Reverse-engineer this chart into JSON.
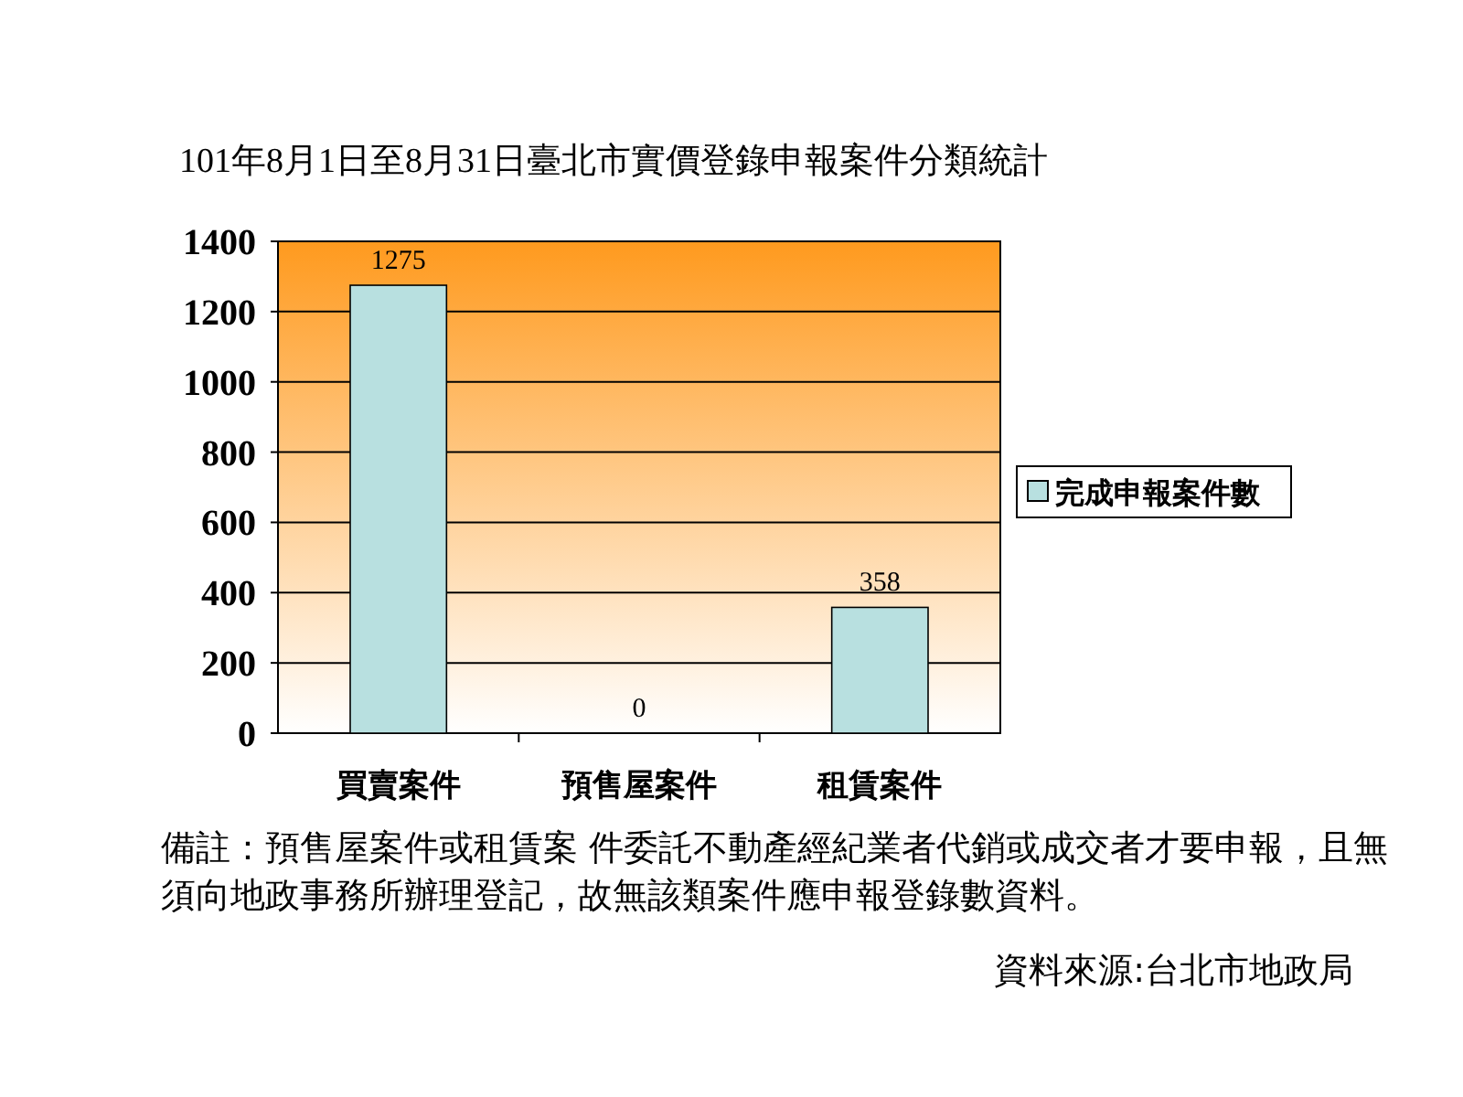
{
  "chart_data": {
    "type": "bar",
    "title": "101年8月1日至8月31日臺北市實價登錄申報案件分類統計",
    "categories": [
      "買賣案件",
      "預售屋案件",
      "租賃案件"
    ],
    "series": [
      {
        "name": "完成申報案件數",
        "color": "#b8e0e0",
        "values": [
          1275,
          0,
          358
        ]
      }
    ],
    "ylim": [
      0,
      1400
    ],
    "yticks": [
      0,
      200,
      400,
      600,
      800,
      1000,
      1200,
      1400
    ],
    "grid": "y",
    "legend": "right",
    "data_labels": true,
    "annotations": [
      "備註：預售屋案件或租賃案 件委託不動產經紀業者代銷或成交者才要申報，且無須向地政事務所辦理登記，故無該類案件應申報登錄數資料。",
      "資料來源:台北市地政局"
    ]
  }
}
